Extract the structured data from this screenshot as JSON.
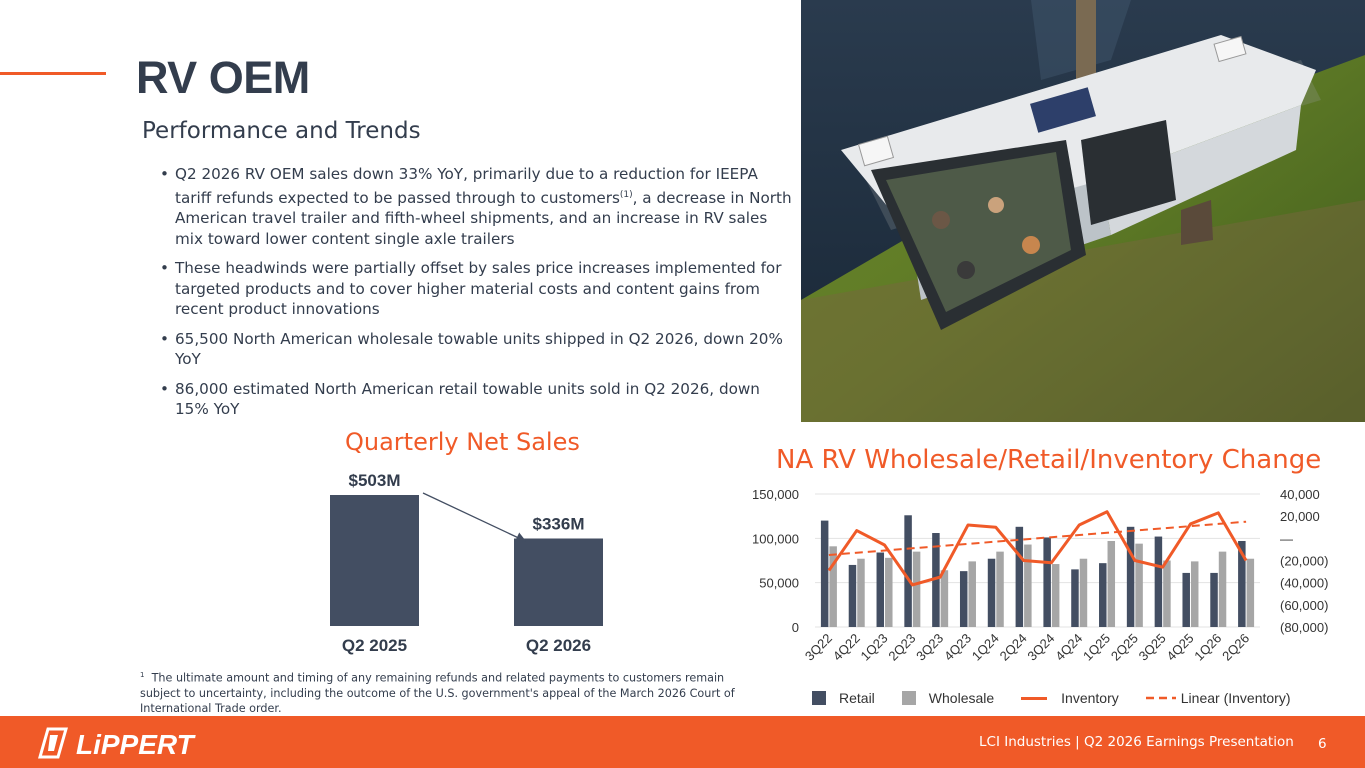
{
  "slide": {
    "title": "RV OEM",
    "subtitle": "Performance and Trends"
  },
  "bullets": [
    {
      "text": "Q2 2026 RV OEM sales down 33% YoY, primarily due to a reduction for IEEPA tariff refunds expected to be passed through to customers",
      "sup": "(1)",
      "tail": ", a decrease in North American travel trailer and fifth-wheel shipments, and an increase in RV sales mix toward lower content single axle trailers"
    },
    {
      "text": "These headwinds were partially offset by sales price increases implemented for targeted products and to cover higher material costs and content gains from recent product innovations"
    },
    {
      "text": "65,500 North American wholesale towable units shipped in Q2 2026, down 20% YoY"
    },
    {
      "text": "86,000 estimated North American retail towable units sold in Q2 2026, down 15% YoY"
    }
  ],
  "sales_chart": {
    "title": "Quarterly Net Sales",
    "bars": [
      {
        "label": "Q2 2025",
        "value": 503,
        "value_label": "$503M"
      },
      {
        "label": "Q2 2026",
        "value": 336,
        "value_label": "$336M"
      }
    ]
  },
  "footnote": {
    "marker": "1",
    "text": "The ultimate amount and timing of any remaining refunds and related payments to customers remain subject to uncertainty, including the outcome of the U.S. government's appeal of the March 2026 Court of International Trade order."
  },
  "chart_data": {
    "type": "bar",
    "title": "NA RV Wholesale/Retail/Inventory Change",
    "categories": [
      "3Q22",
      "4Q22",
      "1Q23",
      "2Q23",
      "3Q23",
      "4Q23",
      "1Q24",
      "2Q24",
      "3Q24",
      "4Q24",
      "1Q25",
      "2Q25",
      "3Q25",
      "4Q25",
      "1Q26",
      "2Q26"
    ],
    "ylim": [
      0,
      150000
    ],
    "y2lim": [
      -80000,
      40000
    ],
    "y_ticks": [
      "150,000",
      "100,000",
      "50,000",
      "0"
    ],
    "y2_ticks": [
      "40,000",
      "20,000",
      "—",
      "(20,000)",
      "(40,000)",
      "(60,000)",
      "(80,000)"
    ],
    "series": [
      {
        "name": "Retail",
        "type": "bar",
        "color": "#434e62",
        "values": [
          120000,
          70000,
          84000,
          126000,
          106000,
          63000,
          77000,
          113000,
          101000,
          65000,
          72000,
          113000,
          102000,
          61000,
          61000,
          97000
        ]
      },
      {
        "name": "Wholesale",
        "type": "bar",
        "color": "#a6a6a6",
        "values": [
          91000,
          77000,
          78000,
          85000,
          64000,
          74000,
          85000,
          93000,
          71000,
          77000,
          97000,
          94000,
          75000,
          74000,
          85000,
          77000
        ]
      },
      {
        "name": "Inventory",
        "type": "line",
        "axis": "right",
        "color": "#f05a28",
        "values": [
          -29000,
          7000,
          -6000,
          -42000,
          -35000,
          12000,
          10000,
          -20000,
          -22000,
          12000,
          24000,
          -20000,
          -26000,
          13000,
          23000,
          -20000
        ]
      },
      {
        "name": "Linear (Inventory)",
        "type": "trend",
        "axis": "right",
        "color": "#f05a28",
        "values": [
          -15000,
          -13000,
          -11000,
          -9000,
          -7000,
          -5000,
          -3000,
          -1000,
          1000,
          3000,
          5000,
          7000,
          9000,
          11000,
          13000,
          15000
        ]
      }
    ],
    "legend_position": "bottom"
  },
  "footer": {
    "logo": "LiPPERT",
    "text": "LCI Industries | Q2 2026 Earnings Presentation",
    "page": "6"
  }
}
